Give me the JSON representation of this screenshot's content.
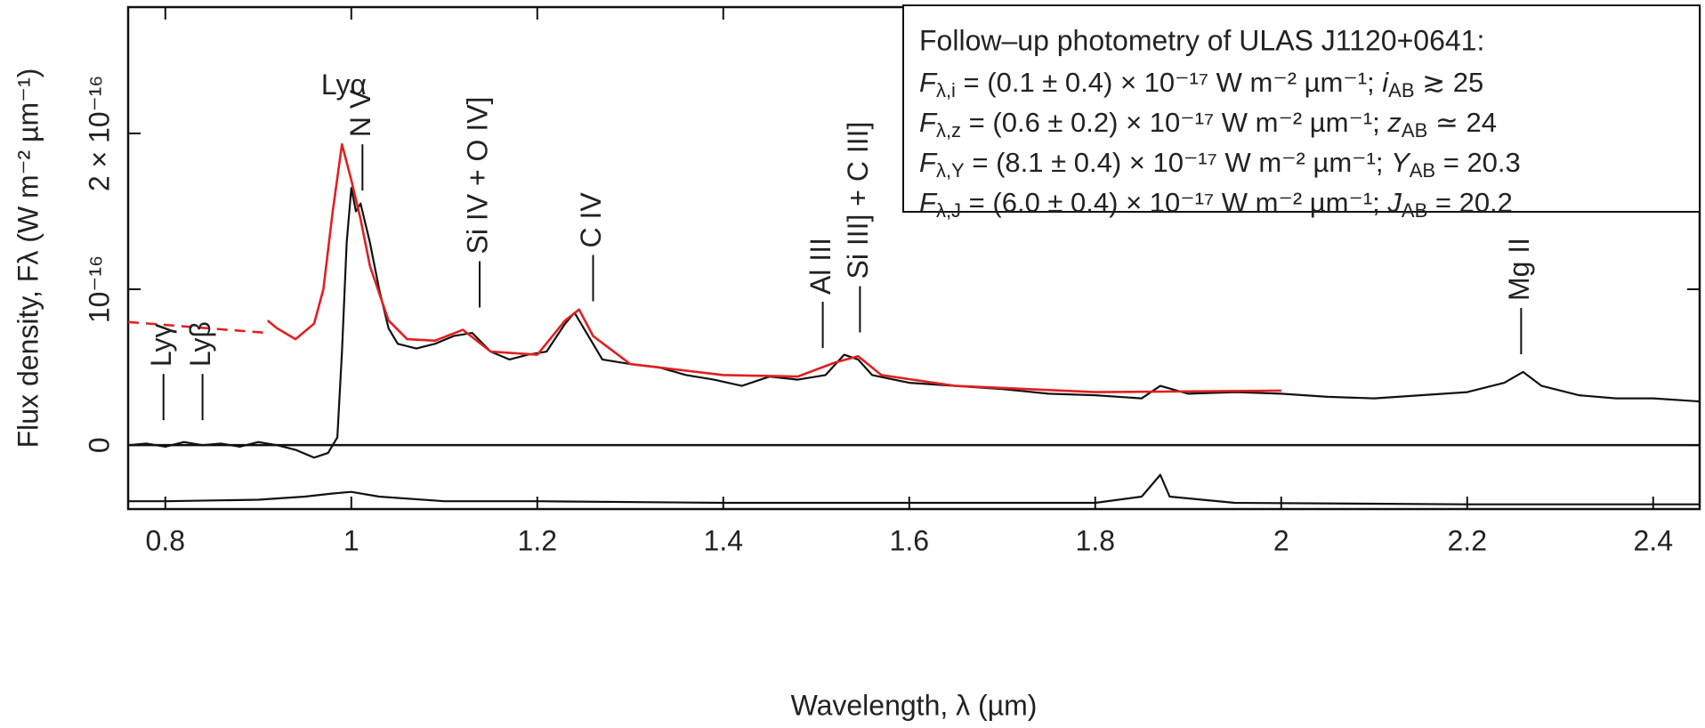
{
  "chart_data": {
    "type": "line",
    "xlabel": "Wavelength, λ (µm)",
    "ylabel": "Flux density, Fλ (W m⁻² µm⁻¹)",
    "xlim": [
      0.76,
      2.45
    ],
    "ylim": [
      -4.1e-17,
      2.81e-16
    ],
    "xticks": [
      0.8,
      1,
      1.2,
      1.4,
      1.6,
      1.8,
      2,
      2.2,
      2.4
    ],
    "yticks": [
      0,
      {
        "value": 1e-16,
        "label": "10⁻¹⁶"
      },
      {
        "value": 2e-16,
        "label": "2 × 10⁻¹⁶"
      }
    ],
    "series": [
      {
        "color": "#111111",
        "style": "solid",
        "x": [
          0.76,
          0.78,
          0.8,
          0.82,
          0.84,
          0.86,
          0.88,
          0.9,
          0.92,
          0.94,
          0.96,
          0.975,
          0.985,
          0.99,
          0.995,
          1.0,
          1.005,
          1.01,
          1.02,
          1.03,
          1.04,
          1.05,
          1.07,
          1.09,
          1.11,
          1.13,
          1.15,
          1.17,
          1.19,
          1.21,
          1.23,
          1.24,
          1.25,
          1.27,
          1.3,
          1.33,
          1.36,
          1.39,
          1.42,
          1.45,
          1.48,
          1.51,
          1.53,
          1.545,
          1.56,
          1.6,
          1.65,
          1.7,
          1.75,
          1.8,
          1.85,
          1.87,
          1.9,
          1.95,
          2.0,
          2.05,
          2.1,
          2.15,
          2.2,
          2.24,
          2.26,
          2.28,
          2.32,
          2.36,
          2.4,
          2.45
        ],
        "values": [
          0,
          1e-18,
          -1e-18,
          2e-18,
          0,
          1e-18,
          -1e-18,
          2e-18,
          0,
          -3e-18,
          -8e-18,
          -5e-18,
          5e-18,
          6e-17,
          1.3e-16,
          1.65e-16,
          1.5e-16,
          1.55e-16,
          1.3e-16,
          1e-16,
          7.5e-17,
          6.5e-17,
          6.2e-17,
          6.5e-17,
          7e-17,
          7.2e-17,
          6e-17,
          5.5e-17,
          5.8e-17,
          6e-17,
          7.8e-17,
          8.5e-17,
          7.5e-17,
          5.5e-17,
          5.2e-17,
          5e-17,
          4.5e-17,
          4.2e-17,
          3.8e-17,
          4.4e-17,
          4.2e-17,
          4.5e-17,
          5.8e-17,
          5.5e-17,
          4.5e-17,
          4e-17,
          3.8e-17,
          3.6e-17,
          3.3e-17,
          3.2e-17,
          3e-17,
          3.8e-17,
          3.3e-17,
          3.4e-17,
          3.3e-17,
          3.1e-17,
          3e-17,
          3.2e-17,
          3.4e-17,
          4e-17,
          4.7e-17,
          3.8e-17,
          3.2e-17,
          3e-17,
          3e-17,
          2.8e-17
        ]
      },
      {
        "color": "#e02020",
        "style": "solid",
        "x": [
          0.91,
          0.92,
          0.94,
          0.96,
          0.97,
          0.98,
          0.99,
          1.0,
          1.01,
          1.02,
          1.04,
          1.06,
          1.09,
          1.12,
          1.15,
          1.2,
          1.23,
          1.245,
          1.26,
          1.3,
          1.4,
          1.48,
          1.52,
          1.545,
          1.57,
          1.65,
          1.8,
          2.0
        ],
        "values": [
          8e-17,
          7.5e-17,
          6.8e-17,
          7.8e-17,
          1e-16,
          1.5e-16,
          1.93e-16,
          1.7e-16,
          1.45e-16,
          1.15e-16,
          8e-17,
          6.8e-17,
          6.7e-17,
          7.4e-17,
          6e-17,
          5.8e-17,
          8e-17,
          8.7e-17,
          7e-17,
          5.2e-17,
          4.5e-17,
          4.4e-17,
          5.3e-17,
          5.7e-17,
          4.5e-17,
          3.8e-17,
          3.4e-17,
          3.5e-17
        ]
      },
      {
        "color": "#e02020",
        "style": "dashed",
        "x": [
          0.76,
          0.91
        ],
        "values": [
          7.9e-17,
          7.2e-17
        ]
      },
      {
        "color": "#111111",
        "style": "solid",
        "x": [
          0.76,
          0.8,
          0.9,
          0.95,
          0.98,
          1.0,
          1.03,
          1.1,
          1.2,
          1.4,
          1.6,
          1.8,
          1.85,
          1.87,
          1.88,
          1.95,
          2.2,
          2.45
        ],
        "values": [
          -3.6e-17,
          -3.6e-17,
          -3.5e-17,
          -3.3e-17,
          -3.1e-17,
          -3e-17,
          -3.3e-17,
          -3.6e-17,
          -3.6e-17,
          -3.7e-17,
          -3.7e-17,
          -3.7e-17,
          -3.3e-17,
          -1.9e-17,
          -3.3e-17,
          -3.7e-17,
          -3.8e-17,
          -3.8e-17
        ]
      }
    ],
    "annotations": [
      {
        "text": "Lyγ",
        "x": 0.798,
        "y": 4.57e-17
      },
      {
        "text": "Lyβ",
        "x": 0.84,
        "y": 4.57e-17
      },
      {
        "text": "Lyα",
        "x": 0.992,
        "y": 2.3e-16,
        "orientation": "horizontal"
      },
      {
        "text": "N V",
        "x": 1.012,
        "y": 1.93e-16
      },
      {
        "text": "Si IV + O IV]",
        "x": 1.138,
        "y": 1.18e-16
      },
      {
        "text": "C IV",
        "x": 1.26,
        "y": 1.22e-16
      },
      {
        "text": "Al III",
        "x": 1.507,
        "y": 9.2e-17
      },
      {
        "text": "Si III] + C III]",
        "x": 1.547,
        "y": 1.02e-16
      },
      {
        "text": "Mg II",
        "x": 2.258,
        "y": 8.8e-17
      }
    ],
    "photometry": {
      "title": "Follow–up photometry of ULAS J1120+0641:",
      "lines": [
        {
          "f": "F",
          "fsub": "λ,i",
          "rest": " = (0.1 ± 0.4) × 10⁻¹⁷ W m⁻² µm⁻¹; ",
          "mag": "i",
          "magsub": "AB",
          "val": " ≳ 25"
        },
        {
          "f": "F",
          "fsub": "λ,z",
          "rest": " = (0.6 ± 0.2) × 10⁻¹⁷ W m⁻² µm⁻¹; ",
          "mag": "z",
          "magsub": "AB",
          "val": " ≃ 24"
        },
        {
          "f": "F",
          "fsub": "λ,Y",
          "rest": " = (8.1 ± 0.4) × 10⁻¹⁷ W m⁻² µm⁻¹; ",
          "mag": "Y",
          "magsub": "AB",
          "val": " = 20.3"
        },
        {
          "f": "F",
          "fsub": "λ,J",
          "rest": " = (6.0 ± 0.4) × 10⁻¹⁷ W m⁻² µm⁻¹; ",
          "mag": "J",
          "magsub": "AB",
          "val": " = 20.2"
        }
      ]
    }
  }
}
